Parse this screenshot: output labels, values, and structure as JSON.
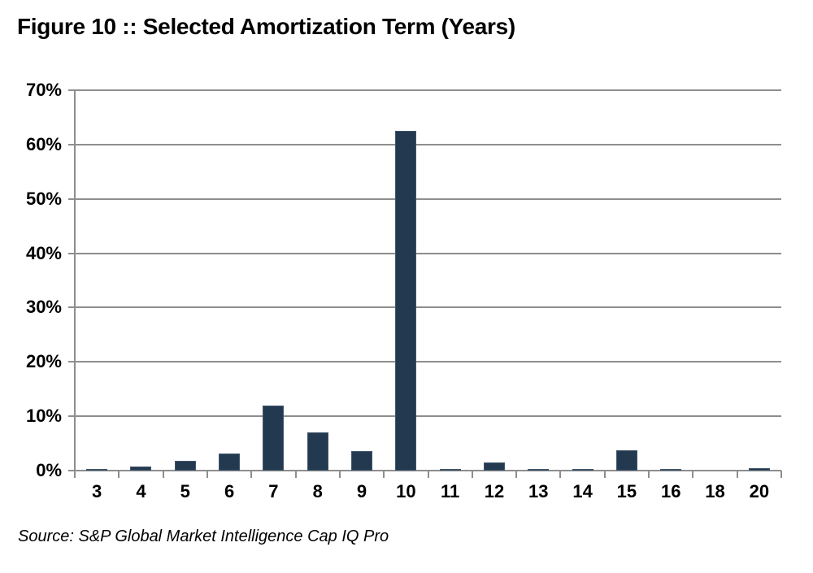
{
  "page": {
    "title": "Figure 10 :: Selected Amortization Term (Years)",
    "source_note": "Source: S&P Global Market Intelligence Cap IQ Pro"
  },
  "colors": {
    "bar_fill": "#23394f",
    "bar_border": "#41566b",
    "gridline": "#8e8e8e",
    "axis": "#8e8e8e",
    "text": "#000000",
    "background": "#ffffff"
  },
  "chart_data": {
    "type": "bar",
    "title": "Figure 10 :: Selected Amortization Term (Years)",
    "categories": [
      "3",
      "4",
      "5",
      "6",
      "7",
      "8",
      "9",
      "10",
      "11",
      "12",
      "13",
      "14",
      "15",
      "16",
      "18",
      "20"
    ],
    "values": [
      0.3,
      0.7,
      1.8,
      3.2,
      12.0,
      7.0,
      3.6,
      62.5,
      0.3,
      1.5,
      0.3,
      0.3,
      3.7,
      0.3,
      0.0,
      0.4
    ],
    "xlabel": "",
    "ylabel": "",
    "ylim": [
      0,
      70
    ],
    "ytick_step": 10,
    "ytick_labels": [
      "0%",
      "10%",
      "20%",
      "30%",
      "40%",
      "50%",
      "60%",
      "70%"
    ],
    "grid": true,
    "legend": false,
    "source": "Source: S&P Global Market Intelligence Cap IQ Pro"
  }
}
